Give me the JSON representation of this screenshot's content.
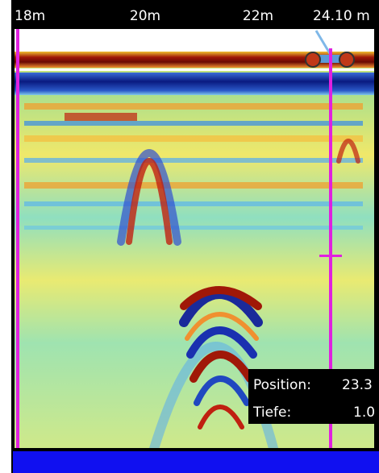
{
  "scale": {
    "labels": [
      "18m",
      "20m",
      "22m",
      "24.10 m"
    ]
  },
  "info": {
    "position_label": "Position:",
    "position_value": "23.3",
    "depth_label": "Tiefe:",
    "depth_value": "1.0"
  }
}
